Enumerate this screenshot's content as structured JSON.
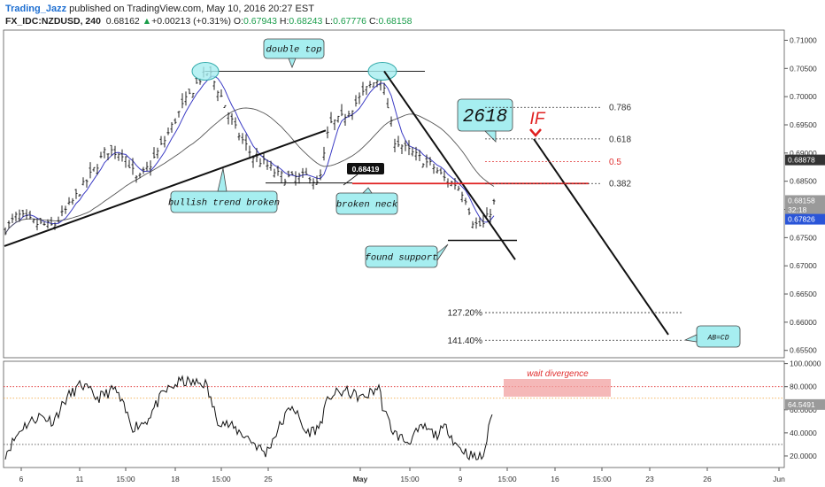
{
  "header": {
    "author": "Trading_Jazz",
    "published_text": "published on TradingView.com, May 10, 2016 20:27 EST",
    "symbol": "FX_IDC:NZDUSD, 240",
    "last": "0.68162",
    "change_arrow": "▲",
    "change": "+0.00213 (+0.31%)",
    "open_label": "O:",
    "open": "0.67943",
    "high_label": "H:",
    "high": "0.68243",
    "low_label": "L:",
    "low": "0.67776",
    "close_label": "C:",
    "close": "0.68158"
  },
  "colors": {
    "candle": "#222222",
    "ma_fast": "#3b3bc4",
    "ma_slow": "#555555",
    "trend_line": "#111111",
    "neck_line": "#e02020",
    "callout_fill": "#a6eef0",
    "rsi_line": "#111111",
    "rsi_upper": "#e03030",
    "rsi_mid": "#f0a030",
    "rsi_lower": "#555555",
    "divergence_box": "#f2a0a0"
  },
  "chart_data": [
    {
      "type": "candlestick",
      "y_ticks": [
        "0.71000",
        "0.70500",
        "0.70000",
        "0.69500",
        "0.69000",
        "0.68500",
        "0.68000",
        "0.67500",
        "0.67000",
        "0.66500",
        "0.66000",
        "0.65500"
      ],
      "ylim": [
        0.6537,
        0.7118
      ],
      "x_ticks": [
        "6",
        "11",
        "15:00",
        "18",
        "15:00",
        "25",
        "May",
        "15:00",
        "9",
        "15:00",
        "16",
        "15:00",
        "23",
        "26",
        "Jun"
      ],
      "price_labels": [
        {
          "text": "0.68878",
          "value": 0.68878,
          "style": "dark"
        },
        {
          "text": "0.68158",
          "value": 0.68158,
          "style": "gray"
        },
        {
          "text": "32:18",
          "value": 0.67993,
          "style": "gray"
        },
        {
          "text": "0.67826",
          "value": 0.67826,
          "style": "blue"
        }
      ],
      "fib_levels": [
        {
          "label": "0.786",
          "value": 0.6981,
          "color": "#333333"
        },
        {
          "label": "0.618",
          "value": 0.6925,
          "color": "#333333"
        },
        {
          "label": "0.5",
          "value": 0.6885,
          "color": "#e03030"
        },
        {
          "label": "0.382",
          "value": 0.6846,
          "color": "#333333"
        }
      ],
      "extension_levels": [
        {
          "label": "127.20%",
          "value": 0.6617
        },
        {
          "label": "141.40%",
          "value": 0.6568
        }
      ],
      "annotations": {
        "double_top": "double top",
        "bullish_trend_broken": "bullish trend broken",
        "broken_neck": "broken neck",
        "neck_price": "0.68419",
        "found_support": "found support",
        "big_number": "2618",
        "if_label": "IF",
        "abcd": "AB=CD"
      }
    },
    {
      "type": "line",
      "name": "RSI",
      "y_ticks": [
        "100.0000",
        "80.0000",
        "60.0000",
        "40.0000",
        "20.0000"
      ],
      "ylim": [
        10,
        102
      ],
      "levels": [
        80,
        70,
        30
      ],
      "last_value_label": "64.5491",
      "annotation": "wait divergence"
    }
  ]
}
